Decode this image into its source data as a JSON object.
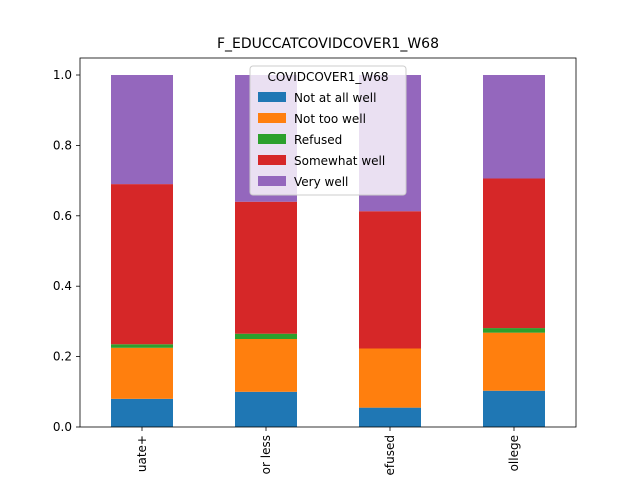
{
  "chart_data": {
    "type": "bar",
    "stacked": true,
    "title": "F_EDUCCATCOVIDCOVER1_W68",
    "xlabel": "",
    "ylabel": "",
    "ylim": [
      0,
      1.0
    ],
    "yticks": [
      "0.0",
      "0.2",
      "0.4",
      "0.6",
      "0.8",
      "1.0"
    ],
    "categories": [
      "uate+",
      "or less",
      "efused",
      "ollege"
    ],
    "legend": {
      "title": "COVIDCOVER1_W68",
      "placement": "top-center"
    },
    "series": [
      {
        "name": "Not at all well",
        "color": "#1f77b4",
        "values": [
          0.08,
          0.1,
          0.055,
          0.103
        ]
      },
      {
        "name": "Not too well",
        "color": "#ff7f0e",
        "values": [
          0.145,
          0.15,
          0.168,
          0.165
        ]
      },
      {
        "name": "Refused",
        "color": "#2ca02c",
        "values": [
          0.01,
          0.015,
          0.0,
          0.013
        ]
      },
      {
        "name": "Somewhat well",
        "color": "#d62728",
        "values": [
          0.455,
          0.375,
          0.39,
          0.425
        ]
      },
      {
        "name": "Very well",
        "color": "#9467bd",
        "values": [
          0.31,
          0.36,
          0.387,
          0.294
        ]
      }
    ]
  }
}
